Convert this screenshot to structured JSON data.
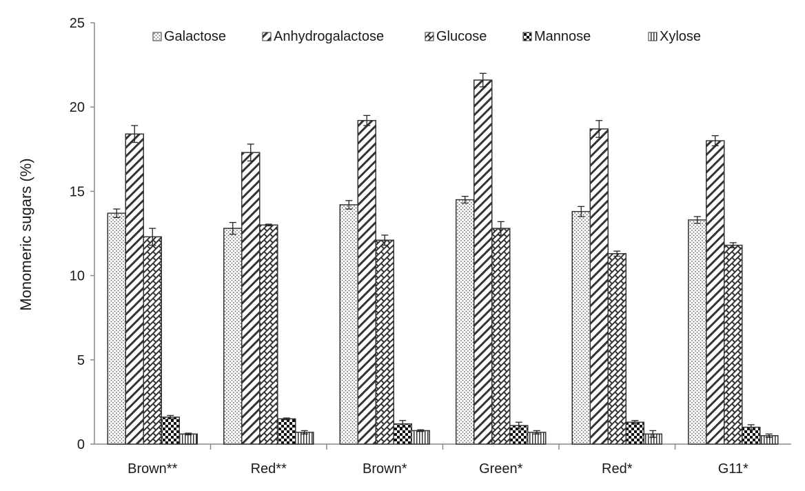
{
  "chart_data": {
    "type": "bar",
    "title": "",
    "xlabel": "",
    "ylabel": "Monomeric sugars (%)",
    "ylim": [
      0,
      25
    ],
    "yticks": [
      0,
      5,
      10,
      15,
      20,
      25
    ],
    "grid": false,
    "legend_position": "top",
    "categories": [
      "Brown**",
      "Red**",
      "Brown*",
      "Green*",
      "Red*",
      "G11*"
    ],
    "series": [
      {
        "name": "Galactose",
        "pattern": "dots",
        "values": [
          13.7,
          12.8,
          14.2,
          14.5,
          13.8,
          13.3
        ],
        "errors": [
          0.25,
          0.35,
          0.25,
          0.2,
          0.3,
          0.2
        ]
      },
      {
        "name": "Anhydrogalactose",
        "pattern": "diagonal",
        "values": [
          18.4,
          17.3,
          19.2,
          21.6,
          18.7,
          18.0
        ],
        "errors": [
          0.5,
          0.5,
          0.3,
          0.4,
          0.5,
          0.3
        ]
      },
      {
        "name": "Glucose",
        "pattern": "crosshatch",
        "values": [
          12.3,
          13.0,
          12.1,
          12.8,
          11.3,
          11.8
        ],
        "errors": [
          0.5,
          0.05,
          0.3,
          0.4,
          0.15,
          0.15
        ]
      },
      {
        "name": "Mannose",
        "pattern": "checker",
        "values": [
          1.6,
          1.5,
          1.2,
          1.1,
          1.3,
          1.0
        ],
        "errors": [
          0.1,
          0.05,
          0.2,
          0.2,
          0.1,
          0.15
        ]
      },
      {
        "name": "Xylose",
        "pattern": "vertical",
        "values": [
          0.6,
          0.7,
          0.8,
          0.7,
          0.6,
          0.5
        ],
        "errors": [
          0.05,
          0.1,
          0.05,
          0.1,
          0.2,
          0.1
        ]
      }
    ]
  }
}
